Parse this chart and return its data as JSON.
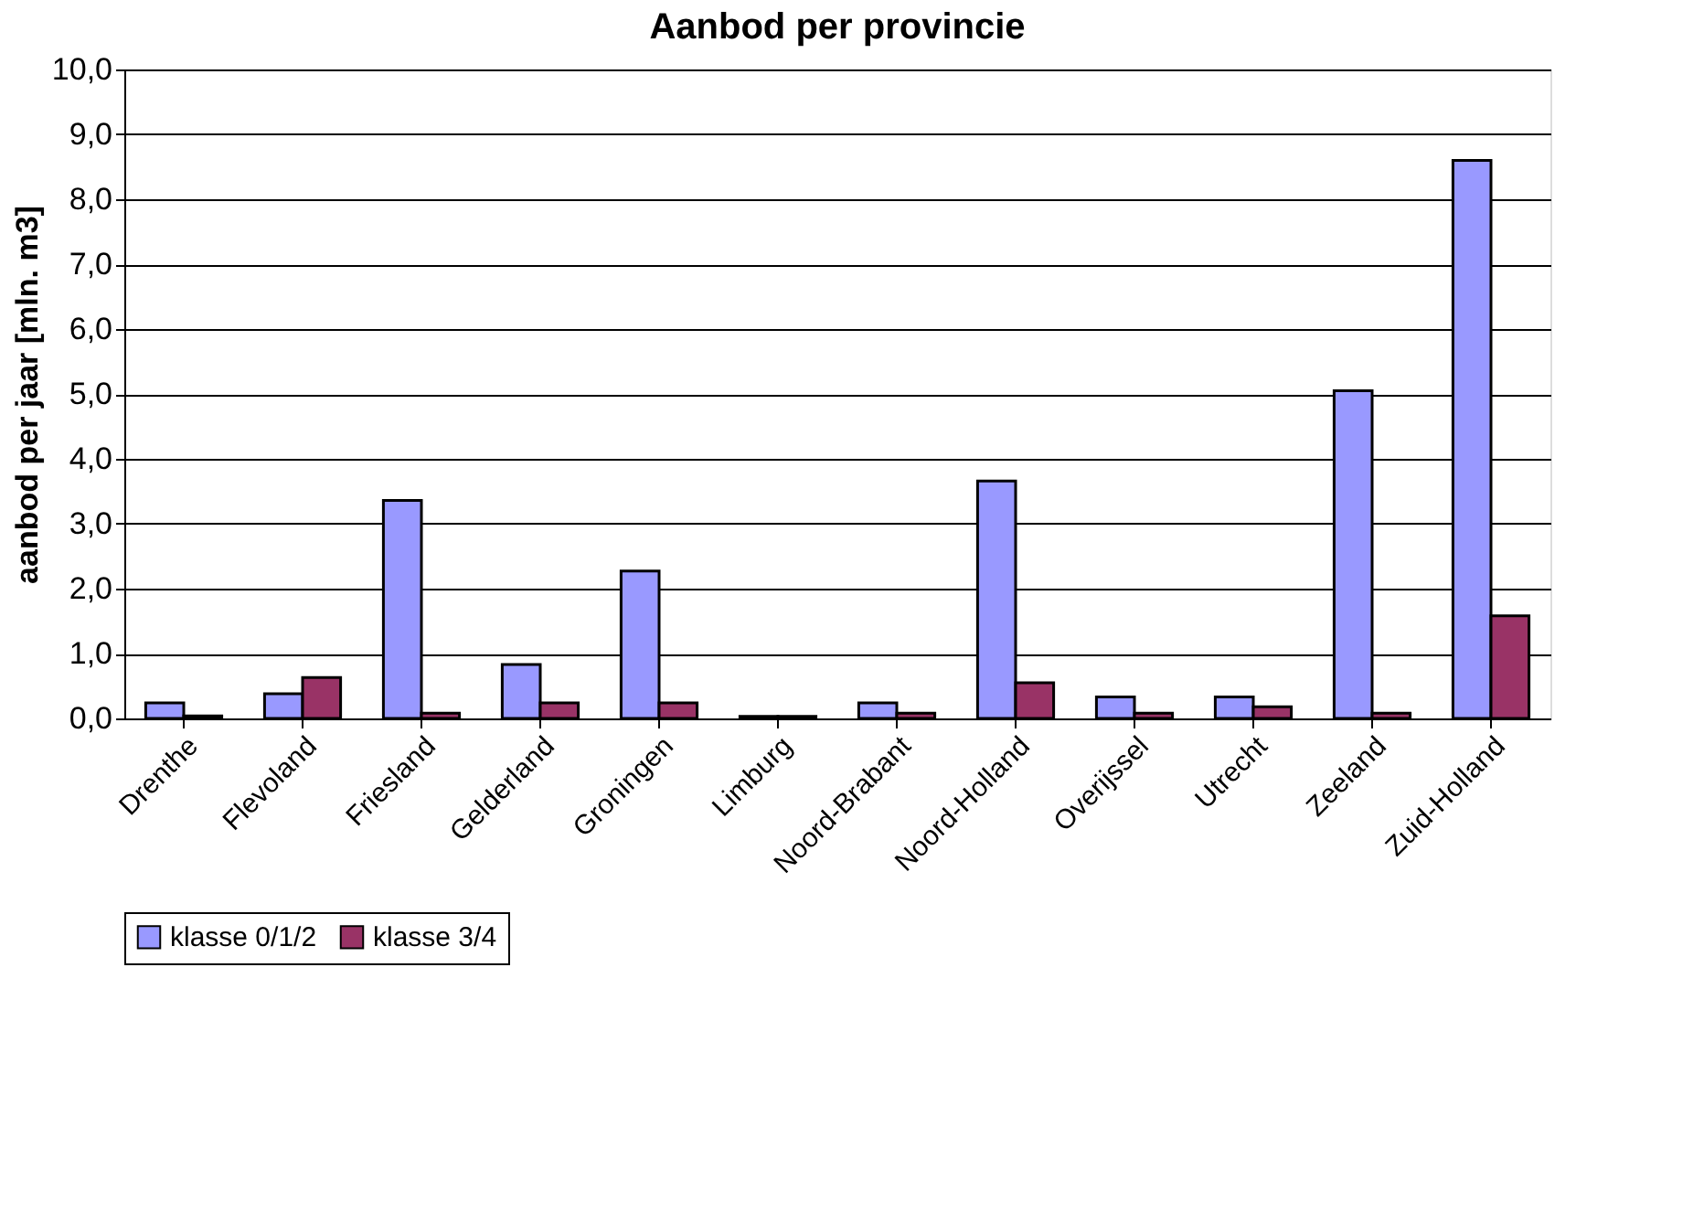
{
  "chart_data": {
    "type": "bar",
    "title": "Aanbod per provincie",
    "ylabel": "aanbod per jaar [mln. m3]",
    "categories": [
      "Drenthe",
      "Flevoland",
      "Friesland",
      "Gelderland",
      "Groningen",
      "Limburg",
      "Noord-Brabant",
      "Noord-Holland",
      "Overijssel",
      "Utrecht",
      "Zeeland",
      "Zuid-Holland"
    ],
    "series": [
      {
        "name": "klasse 0/1/2",
        "color": "#9999ff",
        "values": [
          0.24,
          0.38,
          3.36,
          0.83,
          2.27,
          0.03,
          0.24,
          3.66,
          0.33,
          0.33,
          5.05,
          8.6
        ]
      },
      {
        "name": "klasse 3/4",
        "color": "#993366",
        "values": [
          0.04,
          0.63,
          0.08,
          0.24,
          0.24,
          0.03,
          0.08,
          0.55,
          0.08,
          0.18,
          0.08,
          1.58
        ]
      }
    ],
    "ylim": [
      0,
      10
    ],
    "yticks": [
      {
        "value": 0,
        "label": "0,0"
      },
      {
        "value": 1,
        "label": "1,0"
      },
      {
        "value": 2,
        "label": "2,0"
      },
      {
        "value": 3,
        "label": "3,0"
      },
      {
        "value": 4,
        "label": "4,0"
      },
      {
        "value": 5,
        "label": "5,0"
      },
      {
        "value": 6,
        "label": "6,0"
      },
      {
        "value": 7,
        "label": "7,0"
      },
      {
        "value": 8,
        "label": "8,0"
      },
      {
        "value": 9,
        "label": "9,0"
      },
      {
        "value": 10,
        "label": "10,0"
      }
    ],
    "grid": "y",
    "legend": "bottom"
  }
}
